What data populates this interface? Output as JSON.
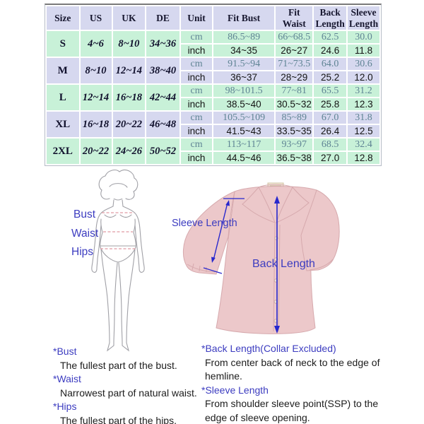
{
  "table": {
    "headers": [
      "Size",
      "US",
      "UK",
      "DE",
      "Unit",
      "Fit Bust",
      "Fit Waist",
      "Back Length",
      "Sleeve Length"
    ],
    "unit_cm": "cm",
    "unit_inch": "inch",
    "rows": [
      {
        "size": "S",
        "us": "4~6",
        "uk": "8~10",
        "de": "34~36",
        "cm": [
          "86.5~89",
          "66~68.5",
          "62.5",
          "30.0"
        ],
        "inch": [
          "34~35",
          "26~27",
          "24.6",
          "11.8"
        ]
      },
      {
        "size": "M",
        "us": "8~10",
        "uk": "12~14",
        "de": "38~40",
        "cm": [
          "91.5~94",
          "71~73.5",
          "64.0",
          "30.6"
        ],
        "inch": [
          "36~37",
          "28~29",
          "25.2",
          "12.0"
        ]
      },
      {
        "size": "L",
        "us": "12~14",
        "uk": "16~18",
        "de": "42~44",
        "cm": [
          "98~101.5",
          "77~81",
          "65.5",
          "31.2"
        ],
        "inch": [
          "38.5~40",
          "30.5~32",
          "25.8",
          "12.3"
        ]
      },
      {
        "size": "XL",
        "us": "16~18",
        "uk": "20~22",
        "de": "46~48",
        "cm": [
          "105.5~109",
          "85~89",
          "67.0",
          "31.8"
        ],
        "inch": [
          "41.5~43",
          "33.5~35",
          "26.4",
          "12.5"
        ]
      },
      {
        "size": "2XL",
        "us": "20~22",
        "uk": "24~26",
        "de": "50~52",
        "cm": [
          "113~117",
          "93~97",
          "68.5",
          "32.4"
        ],
        "inch": [
          "44.5~46",
          "36.5~38",
          "27.0",
          "12.8"
        ]
      }
    ]
  },
  "diagram": {
    "bust_label": "Bust",
    "waist_label": "Waist",
    "hips_label": "Hips",
    "sleeve_length_label": "Sleeve Length",
    "back_length_label": "Back Length"
  },
  "definitions_left": [
    {
      "term": "*Bust",
      "desc": "The fullest part of the bust."
    },
    {
      "term": "*Waist",
      "desc": "Narrowest part of natural waist."
    },
    {
      "term": "*Hips",
      "desc": "The fullest part of the hips."
    }
  ],
  "definitions_right": [
    {
      "term": "*Back Length(Collar Excluded)",
      "desc": "From center back of neck to the edge of hemline."
    },
    {
      "term": "*Sleeve Length",
      "desc": "From shoulder sleeve point(SSP) to the edge of sleeve opening."
    }
  ],
  "colors": {
    "row-green": "#c8f1d8",
    "row-lavender": "#d6d8ef",
    "cm-text": "#5f8494",
    "header-text": "#16162e",
    "label-blue": "#3c3cc0",
    "arrow-blue": "#2727cd",
    "blouse-pink": "#ecc8ca",
    "figure-line": "#a0a0a6",
    "measure-pink": "#e09aa5"
  }
}
